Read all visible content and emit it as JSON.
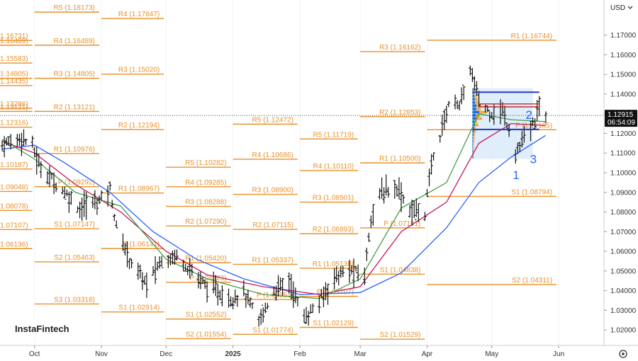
{
  "currency_button": "USD",
  "logo_text": "InstaFintech",
  "current_price": {
    "value": 1.12915,
    "label": "1.12915",
    "countdown": "06:54:09"
  },
  "wave_labels": [
    "1",
    "2",
    "3"
  ],
  "chart_data": {
    "type": "ohlc",
    "title": "",
    "xlabel": "",
    "ylabel": "",
    "ylim": [
      1.0121,
      1.1879
    ],
    "y_ticks": [
      1.17,
      1.16,
      1.15,
      1.14,
      1.13,
      1.12,
      1.11,
      1.1,
      1.09,
      1.08,
      1.07,
      1.06,
      1.05,
      1.04,
      1.03,
      1.02
    ],
    "y_tick_labels": [
      "1.17000",
      "1.16000",
      "1.15000",
      "1.14000",
      "1.13000",
      "1.12000",
      "1.11000",
      "1.10000",
      "1.09000",
      "1.08000",
      "1.07000",
      "1.06000",
      "1.05000",
      "1.04000",
      "1.03000",
      "1.02000"
    ],
    "x_ticks": [
      {
        "label": "Oct",
        "date": "2024-10-01",
        "bold": false
      },
      {
        "label": "Nov",
        "date": "2024-11-01",
        "bold": false
      },
      {
        "label": "Dec",
        "date": "2024-12-01",
        "bold": false
      },
      {
        "label": "2025",
        "date": "2025-01-01",
        "bold": true
      },
      {
        "label": "Feb",
        "date": "2025-02-01",
        "bold": false
      },
      {
        "label": "Mar",
        "date": "2025-03-01",
        "bold": false
      },
      {
        "label": "Apr",
        "date": "2025-04-01",
        "bold": false
      },
      {
        "label": "May",
        "date": "2025-05-01",
        "bold": false
      },
      {
        "label": "Jun",
        "date": "2025-06-01",
        "bold": false
      }
    ],
    "x_range": [
      "2024-09-15",
      "2025-06-22"
    ],
    "price_path": [
      [
        "2024-09-16",
        1.114
      ],
      [
        "2024-09-25",
        1.118
      ],
      [
        "2024-09-30",
        1.114
      ],
      [
        "2024-10-03",
        1.104
      ],
      [
        "2024-10-08",
        1.098
      ],
      [
        "2024-10-15",
        1.09
      ],
      [
        "2024-10-22",
        1.082
      ],
      [
        "2024-10-31",
        1.086
      ],
      [
        "2024-11-05",
        1.092
      ],
      [
        "2024-11-08",
        1.072
      ],
      [
        "2024-11-14",
        1.056
      ],
      [
        "2024-11-22",
        1.043
      ],
      [
        "2024-11-29",
        1.056
      ],
      [
        "2024-12-06",
        1.058
      ],
      [
        "2024-12-13",
        1.05
      ],
      [
        "2024-12-20",
        1.042
      ],
      [
        "2024-12-31",
        1.036
      ],
      [
        "2025-01-06",
        1.039
      ],
      [
        "2025-01-13",
        1.024
      ],
      [
        "2025-01-20",
        1.04
      ],
      [
        "2025-01-27",
        1.045
      ],
      [
        "2025-02-03",
        1.026
      ],
      [
        "2025-02-10",
        1.034
      ],
      [
        "2025-02-17",
        1.047
      ],
      [
        "2025-02-24",
        1.05
      ],
      [
        "2025-03-03",
        1.048
      ],
      [
        "2025-03-06",
        1.078
      ],
      [
        "2025-03-11",
        1.09
      ],
      [
        "2025-03-18",
        1.093
      ],
      [
        "2025-03-24",
        1.081
      ],
      [
        "2025-03-31",
        1.08
      ],
      [
        "2025-04-03",
        1.104
      ],
      [
        "2025-04-11",
        1.135
      ],
      [
        "2025-04-17",
        1.136
      ],
      [
        "2025-04-21",
        1.153
      ],
      [
        "2025-04-25",
        1.137
      ],
      [
        "2025-04-30",
        1.131
      ],
      [
        "2025-05-06",
        1.131
      ],
      [
        "2025-05-09",
        1.123
      ],
      [
        "2025-05-12",
        1.11
      ],
      [
        "2025-05-16",
        1.117
      ],
      [
        "2025-05-20",
        1.124
      ],
      [
        "2025-05-23",
        1.133
      ],
      [
        "2025-05-26",
        1.1291
      ]
    ],
    "moving_averages": [
      {
        "color": "#2962ff",
        "points": [
          [
            "2024-09-16",
            1.112
          ],
          [
            "2024-10-01",
            1.114
          ],
          [
            "2024-10-15",
            1.105
          ],
          [
            "2024-11-05",
            1.09
          ],
          [
            "2024-11-25",
            1.07
          ],
          [
            "2024-12-15",
            1.056
          ],
          [
            "2025-01-06",
            1.046
          ],
          [
            "2025-02-01",
            1.038
          ],
          [
            "2025-03-01",
            1.039
          ],
          [
            "2025-03-20",
            1.049
          ],
          [
            "2025-04-10",
            1.072
          ],
          [
            "2025-04-25",
            1.095
          ],
          [
            "2025-05-10",
            1.108
          ],
          [
            "2025-05-26",
            1.119
          ]
        ]
      },
      {
        "color": "#c2185b",
        "points": [
          [
            "2024-09-16",
            1.116
          ],
          [
            "2024-10-01",
            1.11
          ],
          [
            "2024-10-20",
            1.094
          ],
          [
            "2024-11-10",
            1.08
          ],
          [
            "2024-12-01",
            1.06
          ],
          [
            "2024-12-20",
            1.048
          ],
          [
            "2025-01-15",
            1.042
          ],
          [
            "2025-02-10",
            1.038
          ],
          [
            "2025-03-01",
            1.042
          ],
          [
            "2025-03-20",
            1.07
          ],
          [
            "2025-04-10",
            1.085
          ],
          [
            "2025-04-25",
            1.115
          ],
          [
            "2025-05-10",
            1.125
          ],
          [
            "2025-05-26",
            1.124
          ]
        ]
      },
      {
        "color": "#43a047",
        "points": [
          [
            "2024-09-16",
            1.117
          ],
          [
            "2024-10-01",
            1.107
          ],
          [
            "2024-10-20",
            1.09
          ],
          [
            "2024-11-10",
            1.083
          ],
          [
            "2024-12-01",
            1.056
          ],
          [
            "2024-12-20",
            1.046
          ],
          [
            "2025-01-15",
            1.038
          ],
          [
            "2025-02-10",
            1.036
          ],
          [
            "2025-03-01",
            1.046
          ],
          [
            "2025-03-20",
            1.082
          ],
          [
            "2025-04-10",
            1.095
          ],
          [
            "2025-04-25",
            1.13
          ],
          [
            "2025-05-10",
            1.127
          ],
          [
            "2025-05-26",
            1.126
          ]
        ]
      }
    ],
    "pivot_periods": [
      {
        "start": "2024-08-28",
        "end": "2024-09-30",
        "levels": [
          [
            "",
            1.16731,
            "1.16731"
          ],
          [
            "R4",
            1.16489,
            "1.16489"
          ],
          [
            "",
            1.15583,
            "1.15583"
          ],
          [
            "",
            1.14435,
            "1.14435"
          ],
          [
            "R3",
            1.14805,
            "1.14805"
          ],
          [
            "",
            1.13286,
            "1.13286"
          ],
          [
            "R2",
            1.13121,
            "1.13121"
          ],
          [
            "",
            1.12316,
            "1.12316"
          ],
          [
            "",
            1.10187,
            "1.10187"
          ],
          [
            "",
            1.09048,
            "1.09048"
          ],
          [
            "",
            1.08078,
            "1.08078"
          ],
          [
            "",
            1.07107,
            "1.07107"
          ],
          [
            "",
            1.06136,
            "1.06136"
          ]
        ]
      },
      {
        "start": "2024-10-01",
        "end": "2024-10-31",
        "levels": [
          [
            "R5",
            1.18173,
            "1.18173"
          ],
          [
            "R4",
            1.16489,
            "1.16489"
          ],
          [
            "R3",
            1.14805,
            "1.14805"
          ],
          [
            "R2",
            1.13121,
            "1.13121"
          ],
          [
            "R1",
            1.10976,
            "1.10976"
          ],
          [
            "P",
            1.09292,
            "1.09292"
          ],
          [
            "S1",
            1.07147,
            "1.07147"
          ],
          [
            "S2",
            1.05463,
            "1.05463"
          ],
          [
            "S3",
            1.03318,
            "1.03318"
          ]
        ]
      },
      {
        "start": "2024-11-01",
        "end": "2024-11-30",
        "levels": [
          [
            "R4",
            1.17847,
            "1.17847"
          ],
          [
            "R3",
            1.1502,
            "1.15020"
          ],
          [
            "R2",
            1.12194,
            "1.12194"
          ],
          [
            "R1",
            1.08967,
            "1.08967"
          ],
          [
            "P",
            1.06141,
            "1.06141"
          ],
          [
            "S1",
            1.02914,
            "1.02914"
          ]
        ]
      },
      {
        "start": "2024-12-01",
        "end": "2024-12-31",
        "levels": [
          [
            "R5",
            1.10282,
            "1.10282"
          ],
          [
            "R4",
            1.09285,
            "1.09285"
          ],
          [
            "R3",
            1.08288,
            "1.08288"
          ],
          [
            "R2",
            1.0729,
            "1.07290"
          ],
          [
            "R1",
            1.0542,
            "1.05420"
          ],
          [
            "P",
            1.04423,
            "1.04423"
          ],
          [
            "S1",
            1.02552,
            "1.02552"
          ],
          [
            "S2",
            1.01554,
            "1.01554"
          ]
        ]
      },
      {
        "start": "2025-01-01",
        "end": "2025-01-31",
        "levels": [
          [
            "R5",
            1.12472,
            "1.12472"
          ],
          [
            "R4",
            1.10686,
            "1.10686"
          ],
          [
            "R3",
            1.089,
            "1.08900"
          ],
          [
            "R2",
            1.07115,
            "1.07115"
          ],
          [
            "R1",
            1.05337,
            "1.05337"
          ],
          [
            "P",
            1.03551,
            "1.03551"
          ],
          [
            "S1",
            1.01774,
            "1.01774"
          ]
        ]
      },
      {
        "start": "2025-02-01",
        "end": "2025-02-28",
        "levels": [
          [
            "R5",
            1.11719,
            "1.11719"
          ],
          [
            "R4",
            1.1011,
            "1.10110"
          ],
          [
            "R3",
            1.08501,
            "1.08501"
          ],
          [
            "R2",
            1.06893,
            "1.06893"
          ],
          [
            "R1",
            1.05138,
            "1.05138"
          ],
          [
            "P",
            1.03707,
            "1.03707"
          ],
          [
            "S1",
            1.02129,
            "1.02129"
          ]
        ]
      },
      {
        "start": "2025-03-01",
        "end": "2025-03-31",
        "levels": [
          [
            "R3",
            1.16162,
            "1.16162"
          ],
          [
            "R2",
            1.12853,
            "1.12853"
          ],
          [
            "R1",
            1.105,
            "1.10500"
          ],
          [
            "P",
            1.07191,
            "1.07191"
          ],
          [
            "S1",
            1.04838,
            "1.04838"
          ],
          [
            "S2",
            1.01529,
            "1.01529"
          ]
        ]
      },
      {
        "start": "2025-04-01",
        "end": "2025-05-31",
        "levels": [
          [
            "R1",
            1.16744,
            "1.16744"
          ],
          [
            "P",
            1.12185,
            "1.12185"
          ],
          [
            "S1",
            1.08794,
            "1.08794"
          ],
          [
            "S2",
            1.04311,
            "1.04311"
          ]
        ]
      }
    ],
    "volume_profile": {
      "start": "2025-04-22",
      "end": "2025-05-20",
      "top": 1.143,
      "bottom": 1.107,
      "poc": 1.13
    },
    "blue_levels": [
      {
        "price": 1.141,
        "start": "2025-04-22",
        "end": "2025-05-23"
      },
      {
        "price": 1.122,
        "start": "2025-04-22",
        "end": "2025-05-23"
      }
    ],
    "red_levels": [
      {
        "price": 1.135,
        "start": "2025-04-25",
        "end": "2025-05-23"
      },
      {
        "price": 1.1335,
        "start": "2025-04-25",
        "end": "2025-05-23"
      }
    ]
  }
}
